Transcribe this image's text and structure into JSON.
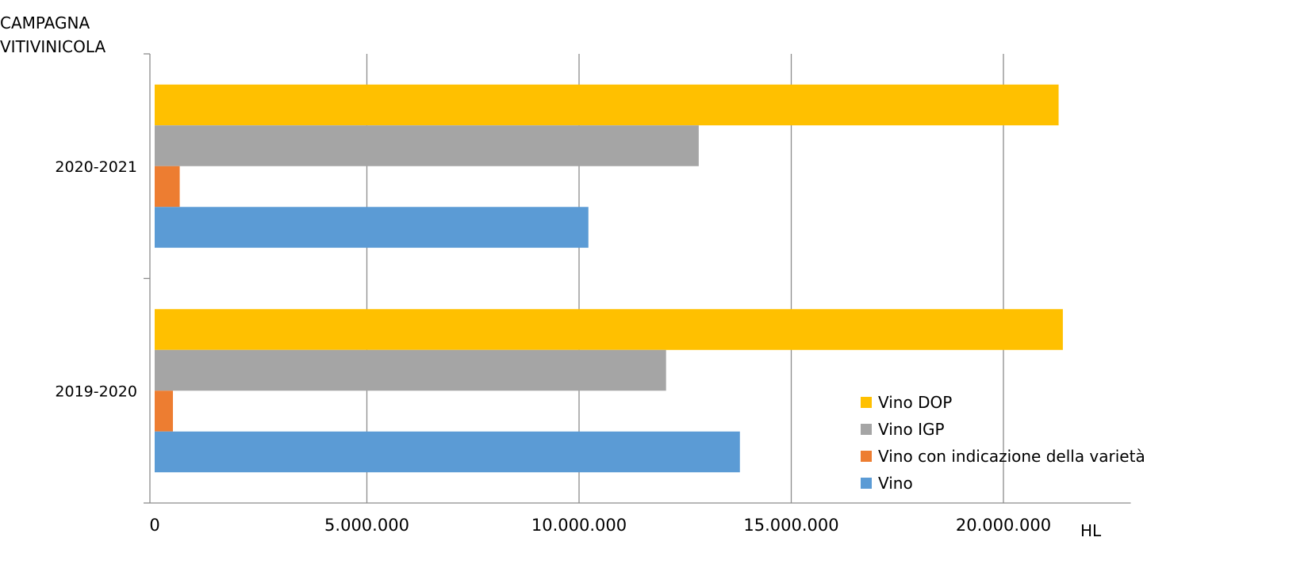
{
  "chart_data": {
    "type": "bar",
    "orientation": "horizontal",
    "ylabel_lines": [
      "CAMPAGNA",
      "VITIVINICOLA"
    ],
    "xlabel": "HL",
    "categories": [
      "2019-2020",
      "2020-2021"
    ],
    "series": [
      {
        "name": "Vino DOP",
        "color": "#FFC000",
        "values": [
          21400000,
          21300000
        ]
      },
      {
        "name": "Vino IGP",
        "color": "#A5A5A5",
        "values": [
          12050000,
          12820000
        ]
      },
      {
        "name": "Vino con indicazione della varietà",
        "color": "#ED7D31",
        "values": [
          430000,
          590000
        ]
      },
      {
        "name": "Vino",
        "color": "#5B9BD5",
        "values": [
          13790000,
          10220000
        ]
      }
    ],
    "xlim": [
      0,
      23000000
    ],
    "xticks": [
      0,
      5000000,
      10000000,
      15000000,
      20000000
    ],
    "xtick_labels": [
      "0",
      "5.000.000",
      "10.000.000",
      "15.000.000",
      "20.000.000"
    ],
    "grid": true,
    "legend_position": "bottom-right"
  }
}
